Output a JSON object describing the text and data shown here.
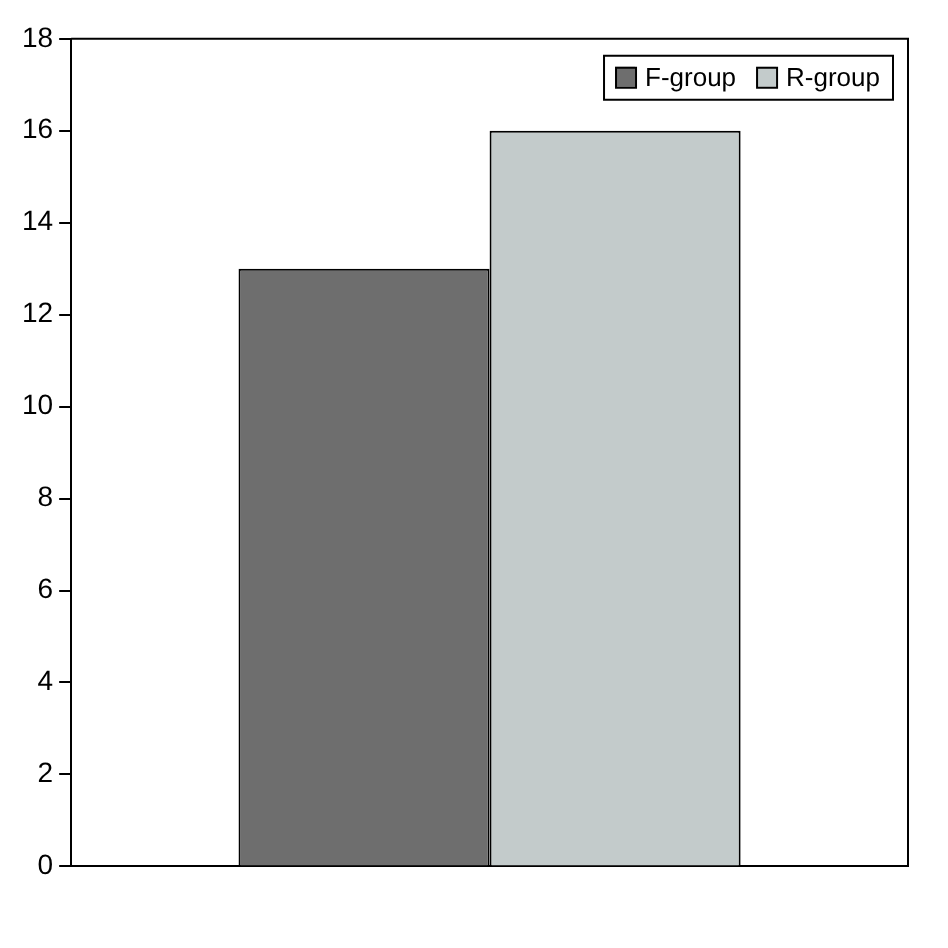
{
  "chart_data": {
    "type": "bar",
    "categories": [
      null
    ],
    "series": [
      {
        "name": "F-group",
        "color": "#6e6e6e",
        "values": [
          13
        ]
      },
      {
        "name": "R-group",
        "color": "#c3cbcb",
        "values": [
          16
        ]
      }
    ],
    "ylim": [
      0,
      18
    ],
    "yticks": [
      0,
      2,
      4,
      6,
      8,
      10,
      12,
      14,
      16,
      18
    ],
    "grid": false,
    "legend": "top right"
  }
}
